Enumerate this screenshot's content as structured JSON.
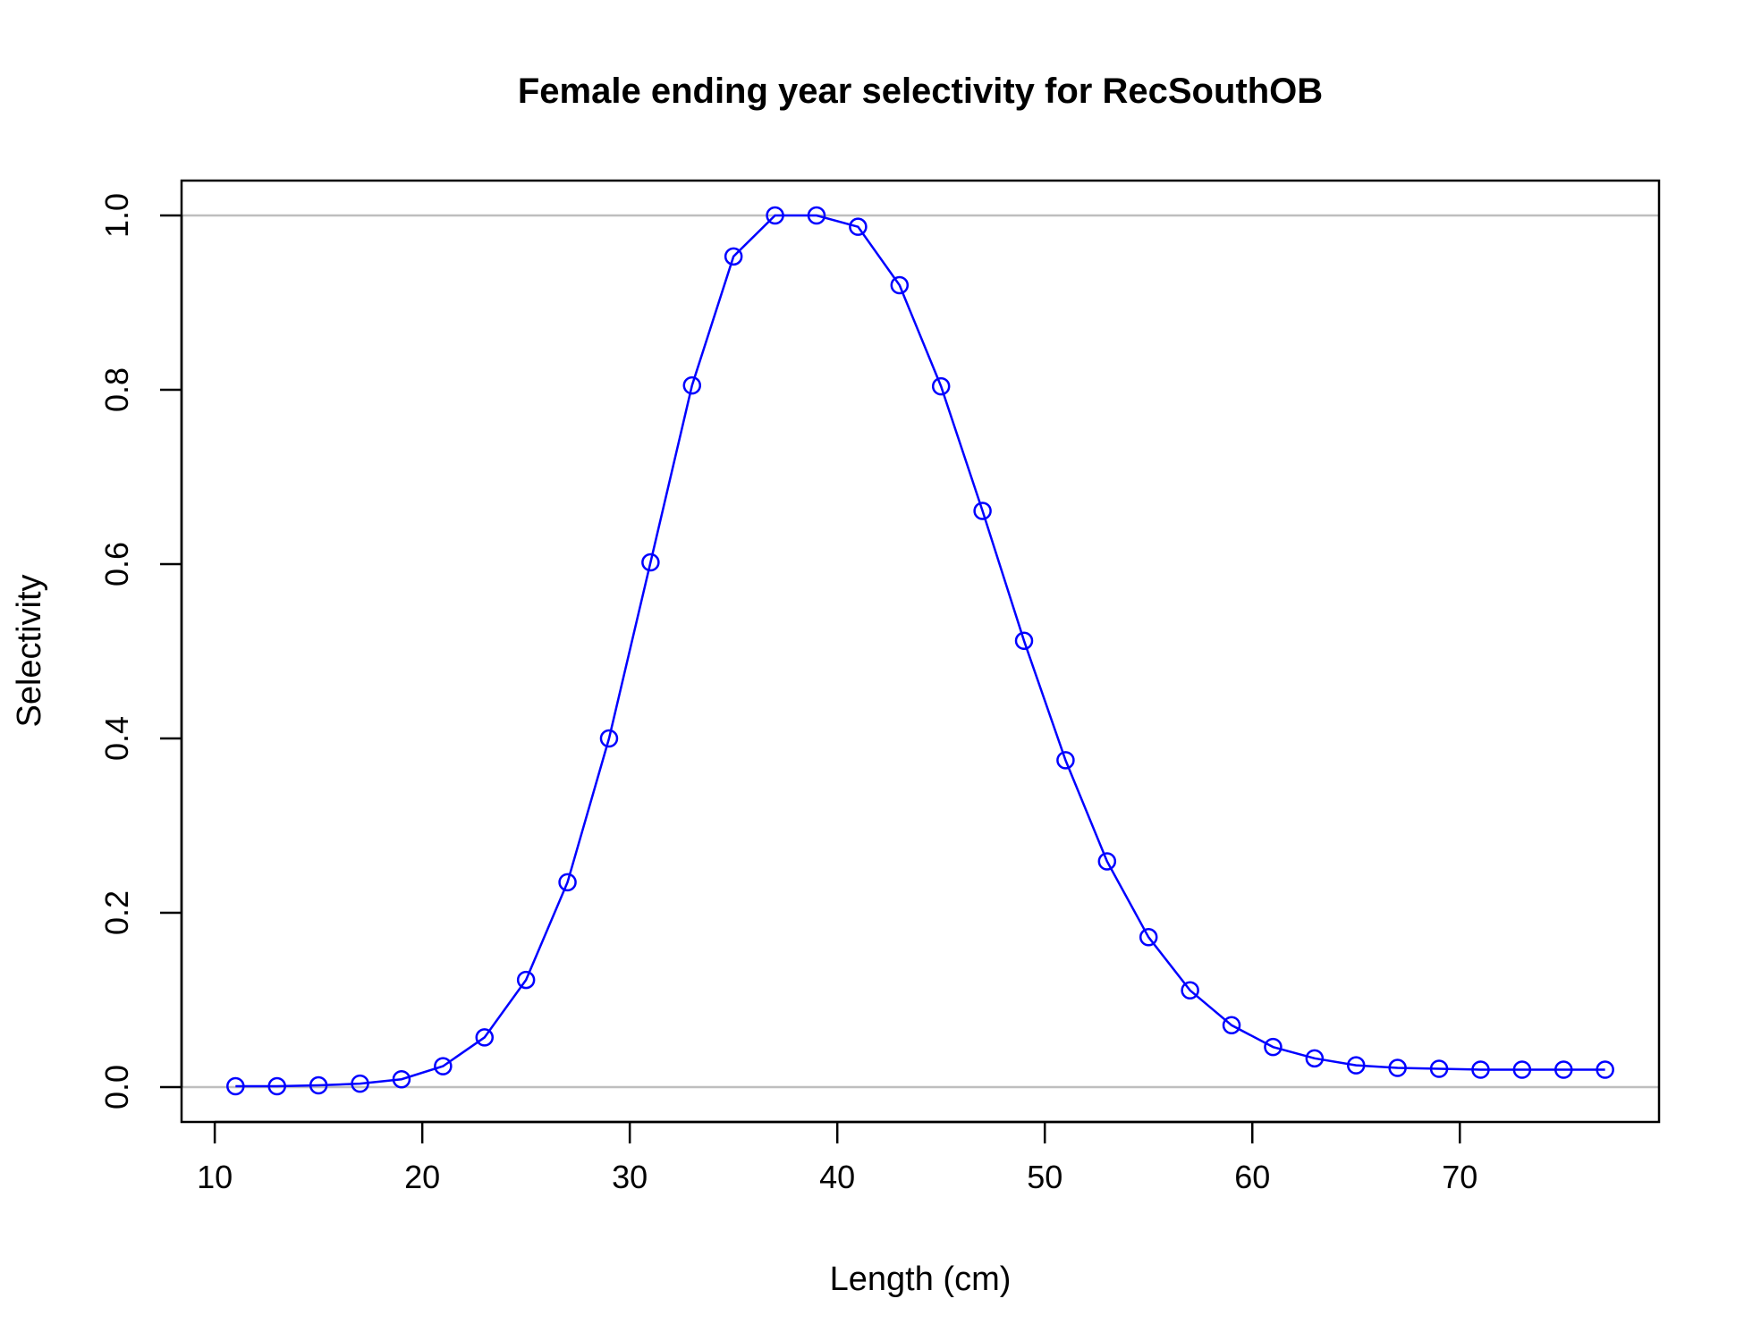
{
  "chart_data": {
    "type": "line",
    "title": "Female ending year selectivity for RecSouthOB",
    "xlabel": "Length (cm)",
    "ylabel": "Selectivity",
    "xlim": [
      8.4,
      79.6
    ],
    "ylim": [
      -0.04,
      1.04
    ],
    "xticks": [
      10,
      20,
      30,
      40,
      50,
      60,
      70
    ],
    "yticks": [
      0.0,
      0.2,
      0.4,
      0.6,
      0.8,
      1.0
    ],
    "ytick_labels": [
      "0.0",
      "0.2",
      "0.4",
      "0.6",
      "0.8",
      "1.0"
    ],
    "reference_lines": [
      0,
      1
    ],
    "reference_line_color": "#bebebe",
    "series_color": "#0000ff",
    "series": [
      {
        "x": [
          11,
          13,
          15,
          17,
          19,
          21,
          23,
          25,
          27,
          29,
          31,
          33,
          35,
          37,
          39,
          41,
          43,
          45,
          47,
          49,
          51,
          53,
          55,
          57,
          59,
          61,
          63,
          65,
          67,
          69,
          71,
          73,
          75,
          77
        ],
        "values": [
          0.001,
          0.001,
          0.002,
          0.004,
          0.009,
          0.024,
          0.057,
          0.123,
          0.235,
          0.4,
          0.602,
          0.805,
          0.953,
          1.0,
          1.0,
          0.987,
          0.92,
          0.804,
          0.661,
          0.512,
          0.375,
          0.259,
          0.172,
          0.111,
          0.071,
          0.046,
          0.033,
          0.025,
          0.022,
          0.021,
          0.02,
          0.02,
          0.02,
          0.02
        ]
      }
    ]
  }
}
